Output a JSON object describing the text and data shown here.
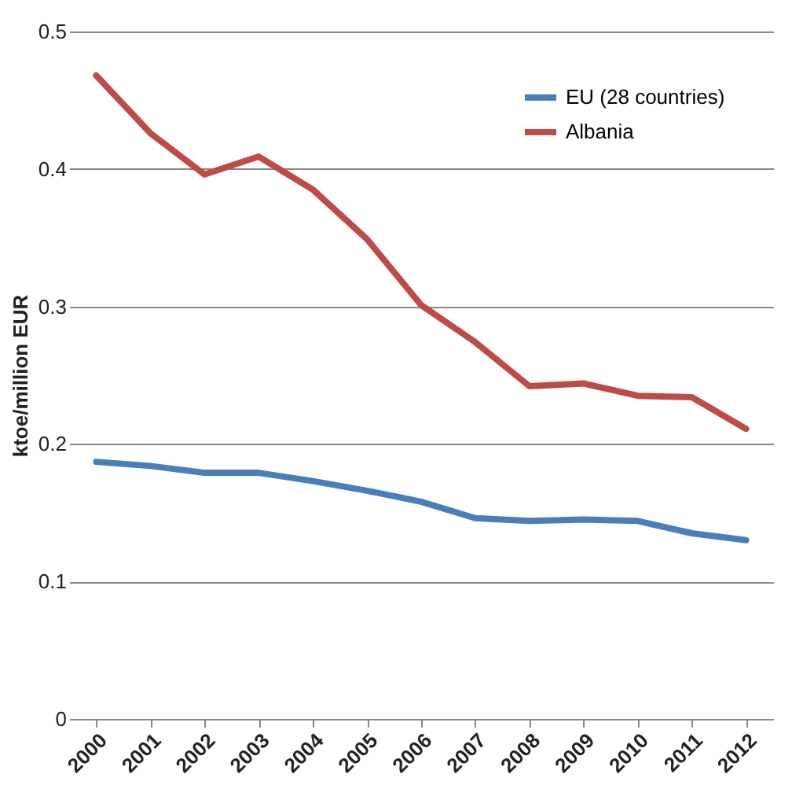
{
  "chart_data": {
    "type": "line",
    "ylabel": "ktoe/million EUR",
    "categories": [
      "2000",
      "2001",
      "2002",
      "2003",
      "2004",
      "2005",
      "2006",
      "2007",
      "2008",
      "2009",
      "2010",
      "2011",
      "2012"
    ],
    "series": [
      {
        "name": "EU (28 countries)",
        "color": "#4a7ebb",
        "values": [
          0.187,
          0.184,
          0.179,
          0.179,
          0.173,
          0.166,
          0.158,
          0.146,
          0.144,
          0.145,
          0.144,
          0.135,
          0.13
        ]
      },
      {
        "name": "Albania",
        "color": "#be4b48",
        "values": [
          0.468,
          0.426,
          0.396,
          0.409,
          0.385,
          0.349,
          0.301,
          0.274,
          0.242,
          0.244,
          0.235,
          0.234,
          0.211
        ]
      }
    ],
    "ylim": [
      0,
      0.5
    ],
    "yticks": [
      {
        "value": 0,
        "label": "0"
      },
      0.1,
      0.2,
      0.3,
      0.4,
      0.5
    ],
    "grid": "y",
    "legend": "top right"
  }
}
